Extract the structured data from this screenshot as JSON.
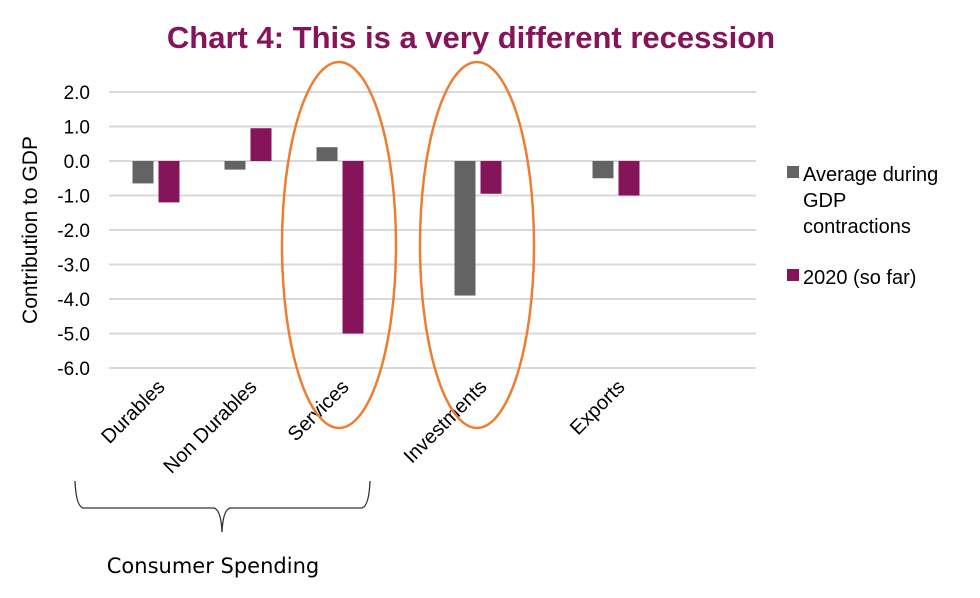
{
  "chart_data": {
    "type": "bar",
    "title": "Chart 4: This is a very different recession",
    "xlabel": "",
    "ylabel": "Contribution to GDP",
    "ylim": [
      -6.0,
      2.0
    ],
    "yticks": [
      "2.0",
      "1.0",
      "0.0",
      "-1.0",
      "-2.0",
      "-3.0",
      "-4.0",
      "-5.0",
      "-6.0"
    ],
    "ytick_values": [
      2,
      1,
      0,
      -1,
      -2,
      -3,
      -4,
      -5,
      -6
    ],
    "grid": true,
    "categories": [
      "Durables",
      "Non Durables",
      "Services",
      "Investments",
      "Exports"
    ],
    "category_slots": [
      0,
      1,
      2,
      3.5,
      5
    ],
    "series": [
      {
        "name": "Average during GDP contractions",
        "legend_lines": [
          "Average during",
          "GDP",
          "contractions"
        ],
        "color": "#636363",
        "values": [
          -0.65,
          -0.25,
          0.4,
          -3.9,
          -0.5
        ]
      },
      {
        "name": "2020 (so far)",
        "legend_lines": [
          "2020 (so far)"
        ],
        "color": "#86145a",
        "values": [
          -1.2,
          0.95,
          -5.0,
          -0.95,
          -1.0
        ]
      }
    ],
    "legend_position": "right",
    "annotations": {
      "highlight_color": "#ed7d31",
      "highlighted_categories": [
        "Services",
        "Investments"
      ],
      "group_bracket": {
        "label": "Consumer Spending",
        "categories": [
          "Durables",
          "Non Durables",
          "Services"
        ]
      }
    }
  }
}
